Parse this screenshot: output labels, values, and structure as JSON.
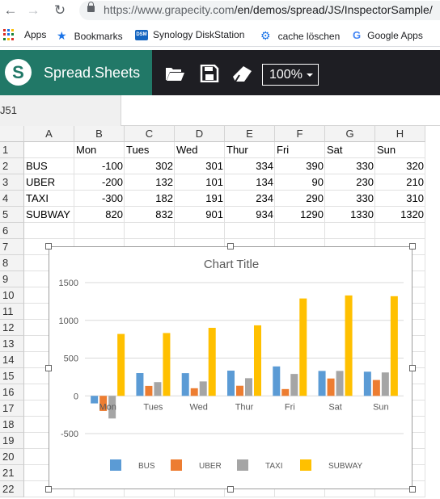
{
  "browser": {
    "url_host": "https://www.grapecity.com",
    "url_path": "/en/demos/spread/JS/InspectorSample/",
    "bookmarks": [
      {
        "label": "Apps",
        "icon": "apps-grid-icon"
      },
      {
        "label": "Bookmarks",
        "icon": "star-icon"
      },
      {
        "label": "Synology DiskStation",
        "icon": "dsm-icon"
      },
      {
        "label": "cache löschen",
        "icon": "gear-icon"
      },
      {
        "label": "Google Apps",
        "icon": "google-icon"
      }
    ],
    "dsm_badge": "DSM",
    "google_letter": "G"
  },
  "app": {
    "brand": "Spread.Sheets",
    "zoom": "100%"
  },
  "namebox": "J51",
  "sheet": {
    "columns": [
      "A",
      "B",
      "C",
      "D",
      "E",
      "F",
      "G",
      "H"
    ],
    "rows": [
      "1",
      "2",
      "3",
      "4",
      "5",
      "6",
      "7",
      "8",
      "9",
      "10",
      "11",
      "12",
      "13",
      "14",
      "15",
      "16",
      "17",
      "18",
      "19",
      "20",
      "21",
      "22"
    ],
    "header_row": [
      "",
      "Mon",
      "Tues",
      "Wed",
      "Thur",
      "Fri",
      "Sat",
      "Sun"
    ],
    "data": [
      {
        "label": "BUS",
        "values": [
          "-100",
          "302",
          "301",
          "334",
          "390",
          "330",
          "320"
        ]
      },
      {
        "label": "UBER",
        "values": [
          "-200",
          "132",
          "101",
          "134",
          "90",
          "230",
          "210"
        ]
      },
      {
        "label": "TAXI",
        "values": [
          "-300",
          "182",
          "191",
          "234",
          "290",
          "330",
          "310"
        ]
      },
      {
        "label": "SUBWAY",
        "values": [
          "820",
          "832",
          "901",
          "934",
          "1290",
          "1330",
          "1320"
        ]
      }
    ]
  },
  "chart_data": {
    "type": "bar",
    "title": "Chart Title",
    "categories": [
      "Mon",
      "Tues",
      "Wed",
      "Thur",
      "Fri",
      "Sat",
      "Sun"
    ],
    "series": [
      {
        "name": "BUS",
        "color": "#5b9bd5",
        "values": [
          -100,
          302,
          301,
          334,
          390,
          330,
          320
        ]
      },
      {
        "name": "UBER",
        "color": "#ed7d31",
        "values": [
          -200,
          132,
          101,
          134,
          90,
          230,
          210
        ]
      },
      {
        "name": "TAXI",
        "color": "#a5a5a5",
        "values": [
          -300,
          182,
          191,
          234,
          290,
          330,
          310
        ]
      },
      {
        "name": "SUBWAY",
        "color": "#ffc000",
        "values": [
          820,
          832,
          901,
          934,
          1290,
          1330,
          1320
        ]
      }
    ],
    "yticks": [
      "-500",
      "0",
      "500",
      "1000",
      "1500"
    ],
    "ylim": [
      -500,
      1500
    ],
    "grid": true,
    "legend": "bottom"
  }
}
